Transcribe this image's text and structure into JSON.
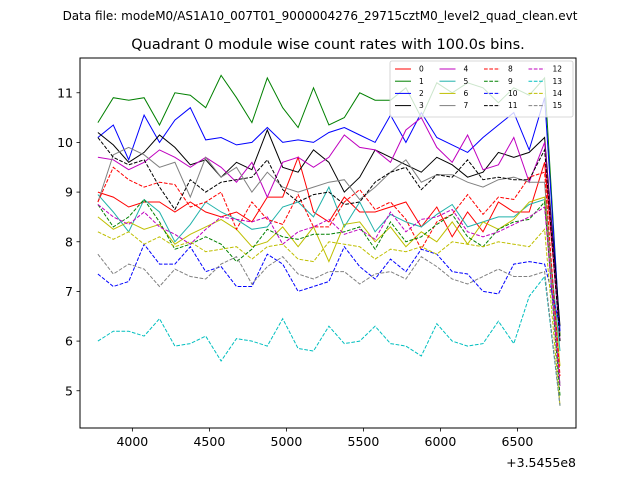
{
  "chart_data": {
    "type": "line",
    "suptitle": "Data file: modeM0/AS1A10_007T01_9000004276_29715cztM0_level2_quad_clean.evt",
    "title": "Quadrant 0 module wise count rates with 100.0s bins.",
    "xlabel": "",
    "ylabel": "",
    "x_offset_label": "+3.5455e8",
    "xlim": [
      3660,
      6880
    ],
    "ylim": [
      4.25,
      11.7
    ],
    "xticks": [
      4000,
      4500,
      5000,
      5500,
      6000,
      6500
    ],
    "yticks": [
      5,
      6,
      7,
      8,
      9,
      10,
      11
    ],
    "grid": false,
    "legend": {
      "placement": "top-right",
      "columns": 4
    },
    "x": [
      3776,
      3876,
      3976,
      4076,
      4176,
      4276,
      4376,
      4476,
      4576,
      4676,
      4776,
      4876,
      4976,
      5076,
      5176,
      5276,
      5376,
      5476,
      5576,
      5676,
      5776,
      5876,
      5976,
      6076,
      6176,
      6276,
      6376,
      6476,
      6576,
      6676,
      6776
    ],
    "series": [
      {
        "name": "0",
        "color": "#ff0000",
        "dash": "solid",
        "values": [
          9.0,
          8.9,
          8.7,
          8.8,
          8.8,
          8.6,
          8.8,
          8.6,
          8.5,
          8.6,
          8.4,
          8.9,
          8.9,
          9.7,
          8.6,
          8.4,
          8.9,
          8.6,
          8.6,
          8.7,
          8.8,
          8.3,
          8.7,
          8.1,
          8.6,
          8.2,
          8.8,
          8.6,
          8.6,
          9.6,
          6.1
        ]
      },
      {
        "name": "1",
        "color": "#008000",
        "dash": "solid",
        "values": [
          10.4,
          10.9,
          10.85,
          10.9,
          10.35,
          11.0,
          10.95,
          10.7,
          11.35,
          10.9,
          10.4,
          11.3,
          10.7,
          10.3,
          11.1,
          10.35,
          10.5,
          11.0,
          10.85,
          10.85,
          11.1,
          10.5,
          11.2,
          11.0,
          11.2,
          11.1,
          10.8,
          11.1,
          10.95,
          11.3,
          6.1
        ]
      },
      {
        "name": "2",
        "color": "#0000ff",
        "dash": "solid",
        "values": [
          10.1,
          10.35,
          9.65,
          10.55,
          10.0,
          10.45,
          10.7,
          10.05,
          10.1,
          9.95,
          10.0,
          10.3,
          10.0,
          10.05,
          10.0,
          10.2,
          10.3,
          10.15,
          10.0,
          10.55,
          10.0,
          10.6,
          10.1,
          9.95,
          9.8,
          10.1,
          10.35,
          10.6,
          9.85,
          10.9,
          6.2
        ]
      },
      {
        "name": "3",
        "color": "#000000",
        "dash": "solid",
        "values": [
          10.2,
          9.95,
          9.6,
          9.8,
          10.15,
          9.9,
          9.55,
          9.65,
          9.3,
          9.6,
          9.45,
          10.25,
          9.5,
          9.4,
          9.85,
          9.6,
          9.0,
          9.3,
          9.85,
          9.7,
          9.55,
          9.4,
          9.7,
          9.55,
          9.3,
          9.4,
          9.8,
          9.7,
          9.8,
          10.1,
          6.3
        ]
      },
      {
        "name": "4",
        "color": "#bf00bf",
        "dash": "solid",
        "values": [
          9.7,
          9.65,
          9.45,
          9.6,
          9.85,
          9.7,
          9.5,
          9.7,
          9.5,
          9.2,
          9.6,
          8.9,
          9.6,
          9.7,
          9.5,
          9.7,
          10.15,
          9.9,
          9.85,
          9.6,
          10.25,
          10.5,
          9.9,
          9.6,
          10.15,
          9.45,
          9.55,
          10.1,
          9.2,
          10.0,
          6.0
        ]
      },
      {
        "name": "5",
        "color": "#20b2aa",
        "dash": "solid",
        "values": [
          8.95,
          8.6,
          8.2,
          8.85,
          8.6,
          8.0,
          8.35,
          8.8,
          8.6,
          8.45,
          8.25,
          8.3,
          8.7,
          8.8,
          8.5,
          9.1,
          8.3,
          8.8,
          8.2,
          8.55,
          8.4,
          8.3,
          8.55,
          8.75,
          8.3,
          8.4,
          8.5,
          8.5,
          8.75,
          8.85,
          5.8
        ]
      },
      {
        "name": "6",
        "color": "#bfbf00",
        "dash": "solid",
        "values": [
          8.5,
          8.25,
          8.4,
          8.25,
          8.35,
          7.95,
          8.15,
          8.3,
          8.45,
          8.25,
          7.9,
          8.0,
          8.3,
          7.9,
          8.3,
          7.6,
          8.35,
          8.4,
          8.0,
          8.3,
          7.9,
          8.2,
          8.0,
          8.4,
          7.95,
          8.4,
          8.25,
          8.45,
          8.8,
          8.9,
          5.5
        ]
      },
      {
        "name": "7",
        "color": "#808080",
        "dash": "solid",
        "values": [
          8.8,
          9.75,
          9.9,
          9.75,
          9.5,
          9.6,
          8.9,
          9.7,
          9.3,
          9.5,
          9.0,
          9.4,
          9.1,
          9.0,
          9.1,
          9.2,
          9.25,
          8.85,
          9.1,
          9.4,
          9.65,
          9.2,
          9.35,
          9.35,
          9.2,
          9.1,
          9.25,
          9.3,
          9.2,
          9.2,
          5.1
        ]
      },
      {
        "name": "8",
        "color": "#ff0000",
        "dash": "dashed",
        "values": [
          8.8,
          9.5,
          9.25,
          9.1,
          9.2,
          9.15,
          8.7,
          8.8,
          9.0,
          8.25,
          8.8,
          8.45,
          8.35,
          8.95,
          8.3,
          8.3,
          8.8,
          9.05,
          8.65,
          8.8,
          8.45,
          7.85,
          8.4,
          8.55,
          8.95,
          8.55,
          8.9,
          8.85,
          9.3,
          9.4,
          5.3
        ]
      },
      {
        "name": "9",
        "color": "#008000",
        "dash": "dashed",
        "values": [
          8.75,
          8.3,
          8.5,
          8.85,
          8.4,
          7.85,
          7.95,
          8.1,
          7.95,
          7.6,
          7.85,
          8.25,
          8.1,
          8.05,
          8.15,
          8.15,
          8.2,
          8.3,
          7.85,
          8.4,
          8.0,
          8.1,
          8.35,
          8.55,
          8.1,
          7.9,
          8.25,
          8.4,
          8.45,
          8.8,
          4.9
        ]
      },
      {
        "name": "10",
        "color": "#0000ff",
        "dash": "dashed",
        "values": [
          7.35,
          7.1,
          7.2,
          7.95,
          7.55,
          7.55,
          7.9,
          7.4,
          7.5,
          7.1,
          7.1,
          7.75,
          7.55,
          7.0,
          7.1,
          7.2,
          7.9,
          7.5,
          7.25,
          7.65,
          7.4,
          7.85,
          7.75,
          7.4,
          7.35,
          7.0,
          6.95,
          7.55,
          7.6,
          7.55,
          6.3
        ]
      },
      {
        "name": "11",
        "color": "#000000",
        "dash": "dashed",
        "values": [
          10.1,
          9.7,
          9.55,
          9.65,
          9.1,
          8.65,
          9.25,
          9.0,
          9.2,
          9.25,
          9.3,
          9.65,
          9.05,
          8.8,
          8.95,
          9.0,
          8.75,
          8.8,
          9.2,
          9.4,
          9.5,
          9.05,
          9.35,
          9.3,
          9.65,
          9.25,
          9.3,
          9.25,
          9.25,
          9.85,
          6.0
        ]
      },
      {
        "name": "12",
        "color": "#bf00bf",
        "dash": "dashed",
        "values": [
          8.75,
          8.5,
          8.35,
          8.6,
          8.3,
          8.15,
          7.95,
          8.25,
          8.5,
          8.45,
          8.4,
          8.5,
          7.95,
          8.2,
          8.3,
          8.45,
          8.15,
          8.25,
          8.05,
          8.6,
          8.2,
          8.45,
          8.5,
          8.65,
          8.2,
          8.1,
          8.2,
          8.35,
          8.5,
          8.7,
          5.1
        ]
      },
      {
        "name": "13",
        "color": "#00bfbf",
        "dash": "dashed",
        "values": [
          6.0,
          6.2,
          6.2,
          6.1,
          6.45,
          5.9,
          5.95,
          6.1,
          5.6,
          6.05,
          6.0,
          5.9,
          6.45,
          5.85,
          5.8,
          6.3,
          5.95,
          6.0,
          6.3,
          5.95,
          5.9,
          5.7,
          6.35,
          6.0,
          5.9,
          5.95,
          6.4,
          5.95,
          6.9,
          7.3,
          4.7
        ]
      },
      {
        "name": "14",
        "color": "#bfbf00",
        "dash": "dashed",
        "values": [
          8.2,
          8.05,
          8.2,
          7.95,
          8.1,
          7.9,
          8.0,
          7.8,
          7.85,
          7.9,
          7.65,
          7.9,
          7.95,
          7.65,
          7.6,
          8.0,
          7.95,
          7.9,
          7.65,
          7.85,
          7.8,
          7.9,
          7.75,
          8.0,
          7.95,
          7.9,
          8.0,
          7.95,
          7.9,
          8.25,
          4.7
        ]
      },
      {
        "name": "15",
        "color": "#808080",
        "dash": "dashed",
        "values": [
          7.75,
          7.35,
          7.55,
          7.45,
          7.1,
          7.45,
          7.3,
          7.25,
          7.55,
          7.7,
          7.15,
          7.5,
          7.7,
          7.35,
          7.25,
          7.4,
          7.4,
          7.15,
          7.35,
          7.4,
          7.25,
          7.7,
          7.5,
          7.25,
          7.15,
          7.3,
          7.45,
          7.3,
          7.3,
          7.4,
          4.7
        ]
      }
    ]
  }
}
